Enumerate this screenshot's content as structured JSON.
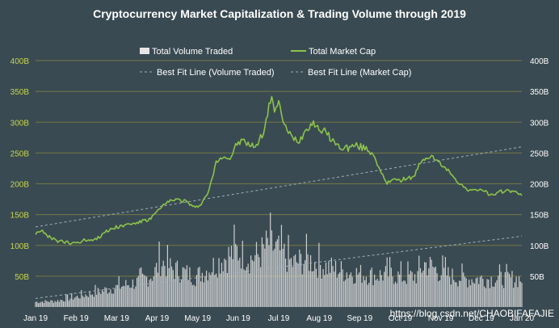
{
  "chart_data": {
    "type": "bar+line",
    "title": "Cryptocurrency Market Capitalization & Trading Volume through 2019",
    "legend": [
      "Total Volume Traded",
      "Total Market Cap",
      "Best Fit Line (Volume Traded)",
      "Best Fit Line (Market Cap)"
    ],
    "left_axis": {
      "ticks": [
        "400B",
        "350B",
        "300B",
        "250B",
        "200B",
        "150B",
        "100B",
        "50B"
      ],
      "range": [
        0,
        400
      ],
      "label_color": "#c6d64a"
    },
    "right_axis": {
      "ticks": [
        "400B",
        "350B",
        "300B",
        "250B",
        "200B",
        "150B",
        "100B",
        "50B"
      ],
      "range": [
        0,
        400
      ]
    },
    "x_ticks": [
      "Jan 19",
      "Feb 19",
      "Mar 19",
      "Apr 19",
      "May 19",
      "Jun 19",
      "Jul 19",
      "Aug 19",
      "Sep 19",
      "Oct 19",
      "Nov 19",
      "Dec 19",
      "Jan 20"
    ],
    "market_cap_keypoints": [
      [
        0,
        120
      ],
      [
        4,
        125
      ],
      [
        8,
        115
      ],
      [
        15,
        108
      ],
      [
        25,
        103
      ],
      [
        35,
        108
      ],
      [
        45,
        112
      ],
      [
        50,
        122
      ],
      [
        58,
        130
      ],
      [
        65,
        133
      ],
      [
        75,
        138
      ],
      [
        82,
        142
      ],
      [
        90,
        160
      ],
      [
        95,
        170
      ],
      [
        100,
        175
      ],
      [
        108,
        172
      ],
      [
        115,
        160
      ],
      [
        120,
        170
      ],
      [
        125,
        190
      ],
      [
        130,
        235
      ],
      [
        135,
        245
      ],
      [
        140,
        240
      ],
      [
        145,
        265
      ],
      [
        150,
        270
      ],
      [
        155,
        260
      ],
      [
        160,
        265
      ],
      [
        165,
        290
      ],
      [
        168,
        325
      ],
      [
        170,
        345
      ],
      [
        172,
        318
      ],
      [
        175,
        330
      ],
      [
        178,
        305
      ],
      [
        181,
        285
      ],
      [
        185,
        275
      ],
      [
        190,
        270
      ],
      [
        195,
        290
      ],
      [
        200,
        300
      ],
      [
        203,
        290
      ],
      [
        208,
        285
      ],
      [
        212,
        275
      ],
      [
        218,
        260
      ],
      [
        225,
        258
      ],
      [
        230,
        262
      ],
      [
        236,
        258
      ],
      [
        240,
        255
      ],
      [
        244,
        245
      ],
      [
        248,
        220
      ],
      [
        253,
        200
      ],
      [
        258,
        210
      ],
      [
        262,
        205
      ],
      [
        268,
        210
      ],
      [
        272,
        210
      ],
      [
        276,
        230
      ],
      [
        280,
        240
      ],
      [
        285,
        245
      ],
      [
        290,
        235
      ],
      [
        295,
        225
      ],
      [
        300,
        215
      ],
      [
        305,
        200
      ],
      [
        310,
        192
      ],
      [
        315,
        188
      ],
      [
        320,
        192
      ],
      [
        325,
        185
      ],
      [
        330,
        180
      ],
      [
        335,
        187
      ],
      [
        340,
        190
      ],
      [
        345,
        186
      ],
      [
        350,
        183
      ]
    ],
    "volume_envelope": [
      [
        0,
        10
      ],
      [
        15,
        12
      ],
      [
        30,
        20
      ],
      [
        45,
        30
      ],
      [
        60,
        40
      ],
      [
        75,
        50
      ],
      [
        85,
        65
      ],
      [
        90,
        90
      ],
      [
        98,
        75
      ],
      [
        105,
        70
      ],
      [
        115,
        60
      ],
      [
        125,
        75
      ],
      [
        135,
        95
      ],
      [
        145,
        110
      ],
      [
        155,
        95
      ],
      [
        162,
        105
      ],
      [
        168,
        125
      ],
      [
        172,
        115
      ],
      [
        178,
        105
      ],
      [
        185,
        85
      ],
      [
        195,
        95
      ],
      [
        205,
        82
      ],
      [
        215,
        75
      ],
      [
        225,
        68
      ],
      [
        235,
        65
      ],
      [
        245,
        62
      ],
      [
        255,
        65
      ],
      [
        265,
        58
      ],
      [
        275,
        62
      ],
      [
        280,
        85
      ],
      [
        285,
        80
      ],
      [
        290,
        70
      ],
      [
        300,
        60
      ],
      [
        310,
        55
      ],
      [
        320,
        56
      ],
      [
        330,
        55
      ],
      [
        340,
        56
      ],
      [
        350,
        55
      ]
    ],
    "best_fit_market_cap": {
      "start": 130,
      "end": 260
    },
    "best_fit_volume": {
      "start": 14,
      "end": 115
    },
    "colors": {
      "background": "#3a4a52",
      "market_cap_line": "#8bc34a",
      "volume_bars": "#e6e6e6",
      "grid": "#8a8a3f",
      "best_fit": "#9fb0bd"
    }
  },
  "watermark": "https://blog.csdn.net/CHAOBIFAFAJIE"
}
